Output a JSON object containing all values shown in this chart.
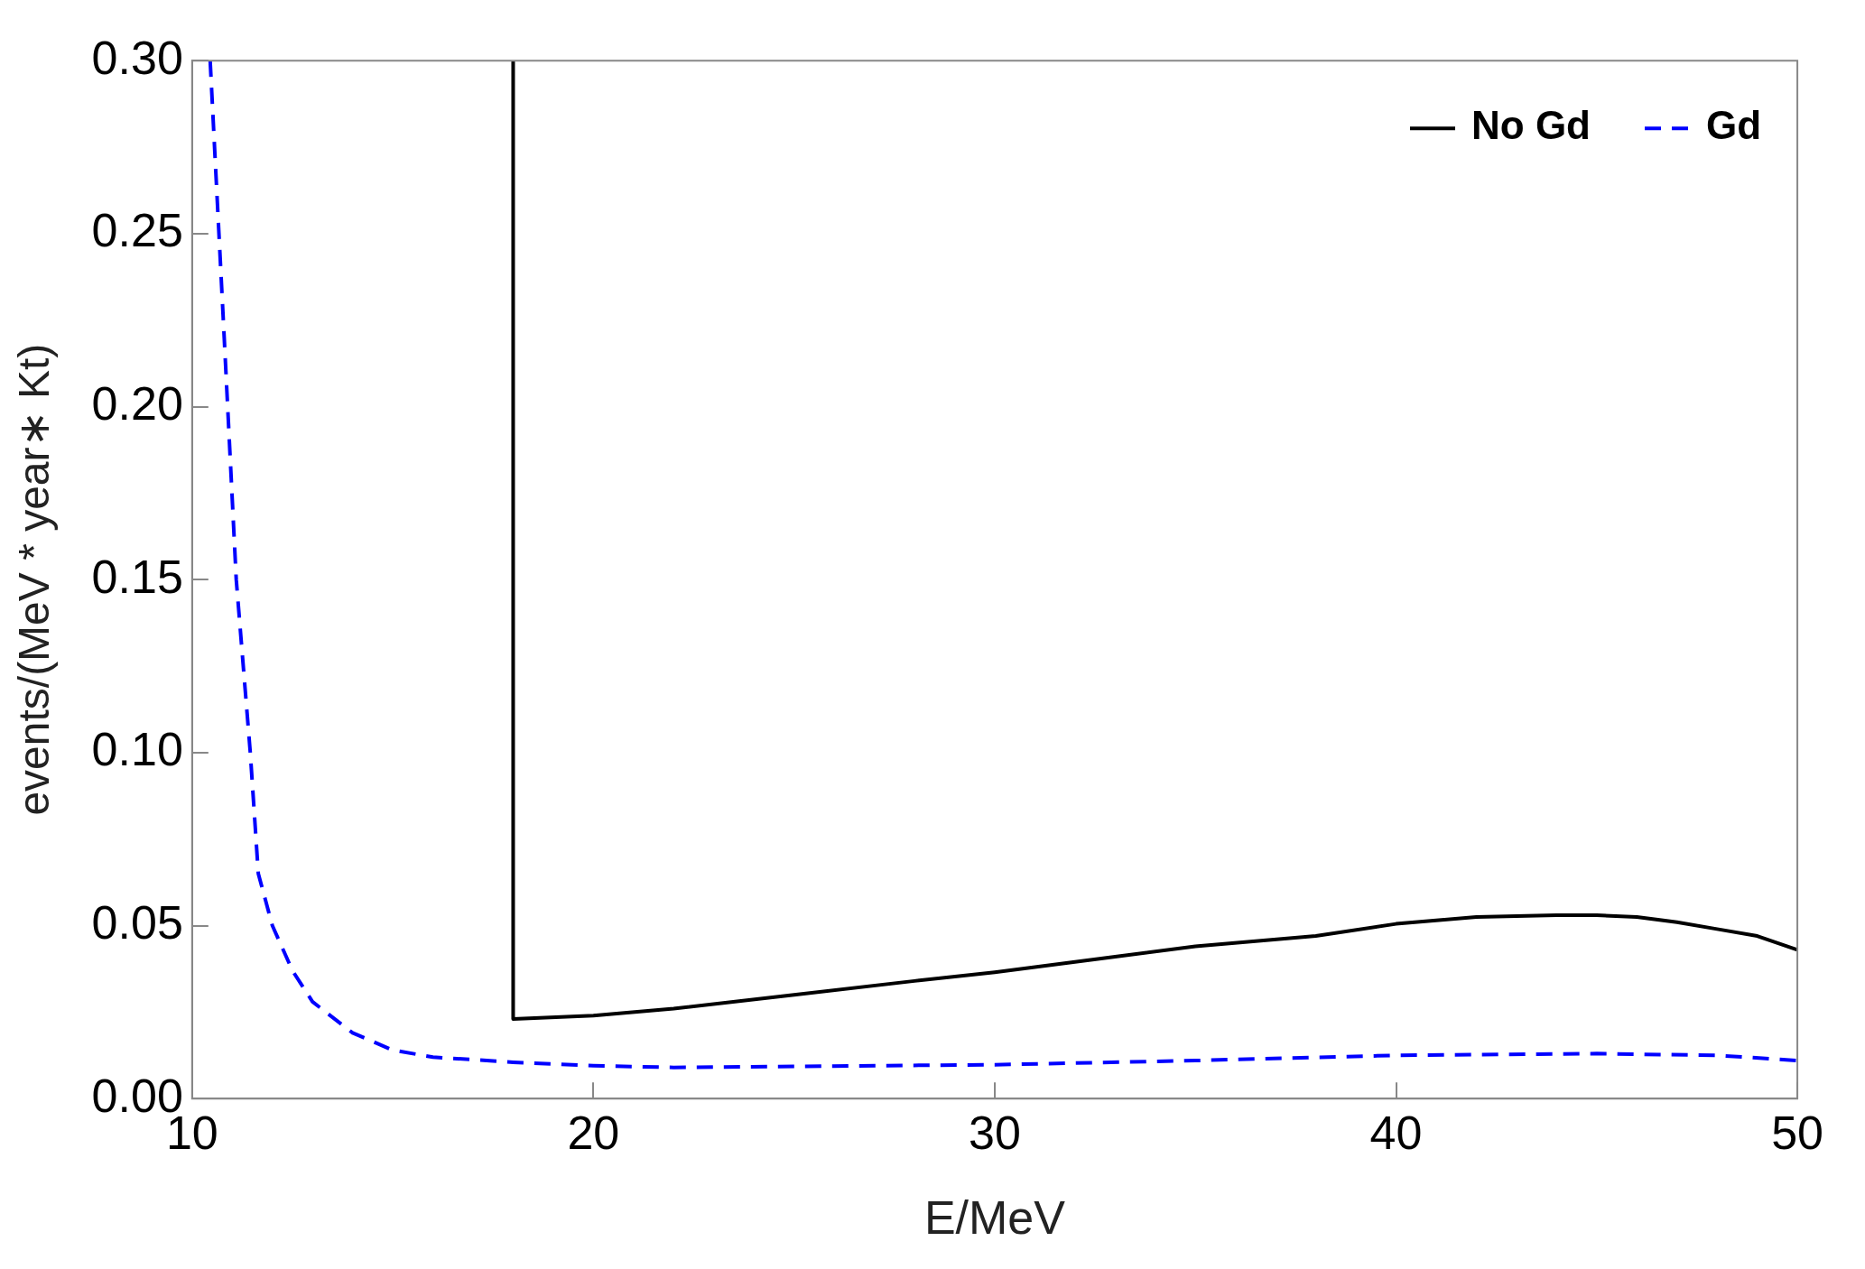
{
  "chart_data": {
    "type": "line",
    "xlabel": "E/MeV",
    "ylabel": "events/(MeV * year∗ Kt)",
    "xlim": [
      10,
      50
    ],
    "xticks": [
      10,
      20,
      30,
      40,
      50
    ],
    "ylim": [
      0,
      0.3
    ],
    "yticks": [
      {
        "value": 0,
        "label": "0.00"
      },
      {
        "value": 0.05,
        "label": "0.05"
      },
      {
        "value": 0.1,
        "label": "0.10"
      },
      {
        "value": 0.15,
        "label": "0.15"
      },
      {
        "value": 0.2,
        "label": "0.20"
      },
      {
        "value": 0.25,
        "label": "0.25"
      },
      {
        "value": 0.3,
        "label": "0.30"
      }
    ],
    "grid": false,
    "legend": "top right",
    "marker": "none",
    "series": [
      {
        "name": "No Gd",
        "color": "#000000",
        "line_style": "solid",
        "x": [
          18,
          18,
          20,
          22,
          25,
          28,
          30,
          33,
          35,
          38,
          40,
          42,
          44,
          45,
          46,
          47,
          48,
          49,
          50
        ],
        "values": [
          0.3,
          0.023,
          0.024,
          0.026,
          0.03,
          0.034,
          0.0365,
          0.041,
          0.044,
          0.047,
          0.0505,
          0.0525,
          0.053,
          0.053,
          0.0525,
          0.051,
          0.049,
          0.047,
          0.043
        ]
      },
      {
        "name": "Gd",
        "color": "#0000ff",
        "line_style": "dashed",
        "x": [
          10.45,
          10.8,
          11.1,
          11.45,
          11.65,
          12,
          12.5,
          13,
          14,
          15,
          16,
          18,
          20,
          22,
          25,
          30,
          35,
          40,
          45,
          48,
          50
        ],
        "values": [
          0.3,
          0.22,
          0.15,
          0.1,
          0.065,
          0.05,
          0.037,
          0.028,
          0.019,
          0.014,
          0.012,
          0.0105,
          0.0095,
          0.009,
          0.0093,
          0.0098,
          0.011,
          0.0125,
          0.013,
          0.0125,
          0.011
        ]
      }
    ]
  }
}
